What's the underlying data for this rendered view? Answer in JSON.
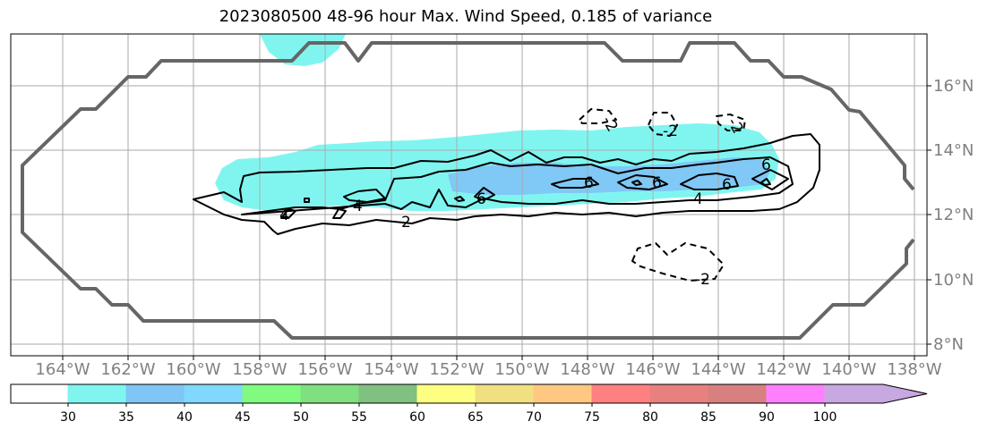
{
  "title": "2023080500 48-96 hour Max. Wind Speed, 0.185 of variance",
  "lon_ticks": [
    "164°W",
    "162°W",
    "160°W",
    "158°W",
    "156°W",
    "154°W",
    "152°W",
    "150°W",
    "148°W",
    "146°W",
    "144°W",
    "142°W",
    "140°W",
    "138°W"
  ],
  "lat_ticks": [
    "16°N",
    "14°N",
    "12°N",
    "10°N",
    "8°N"
  ],
  "colorbar": {
    "labels": [
      "30",
      "35",
      "40",
      "45",
      "50",
      "55",
      "60",
      "65",
      "70",
      "75",
      "80",
      "85",
      "90",
      "100"
    ],
    "colors": [
      "#80f5f0",
      "#7ec6f5",
      "#80d8fc",
      "#80fb80",
      "#80e080",
      "#80c080",
      "#fefe80",
      "#f0e080",
      "#fec880",
      "#ff8080",
      "#e88080",
      "#d88080",
      "#ff80fe",
      "#c8a8e0"
    ]
  },
  "contour_labels": [
    {
      "text": "2"
    },
    {
      "text": "2"
    },
    {
      "text": "2"
    },
    {
      "text": "2"
    },
    {
      "text": "2"
    },
    {
      "text": "4"
    },
    {
      "text": "4"
    },
    {
      "text": "4"
    },
    {
      "text": "6"
    },
    {
      "text": "6"
    },
    {
      "text": "6"
    },
    {
      "text": "6"
    },
    {
      "text": "6"
    },
    {
      "text": "-2"
    },
    {
      "text": "-2"
    },
    {
      "text": "-2"
    },
    {
      "text": "-2"
    }
  ]
}
